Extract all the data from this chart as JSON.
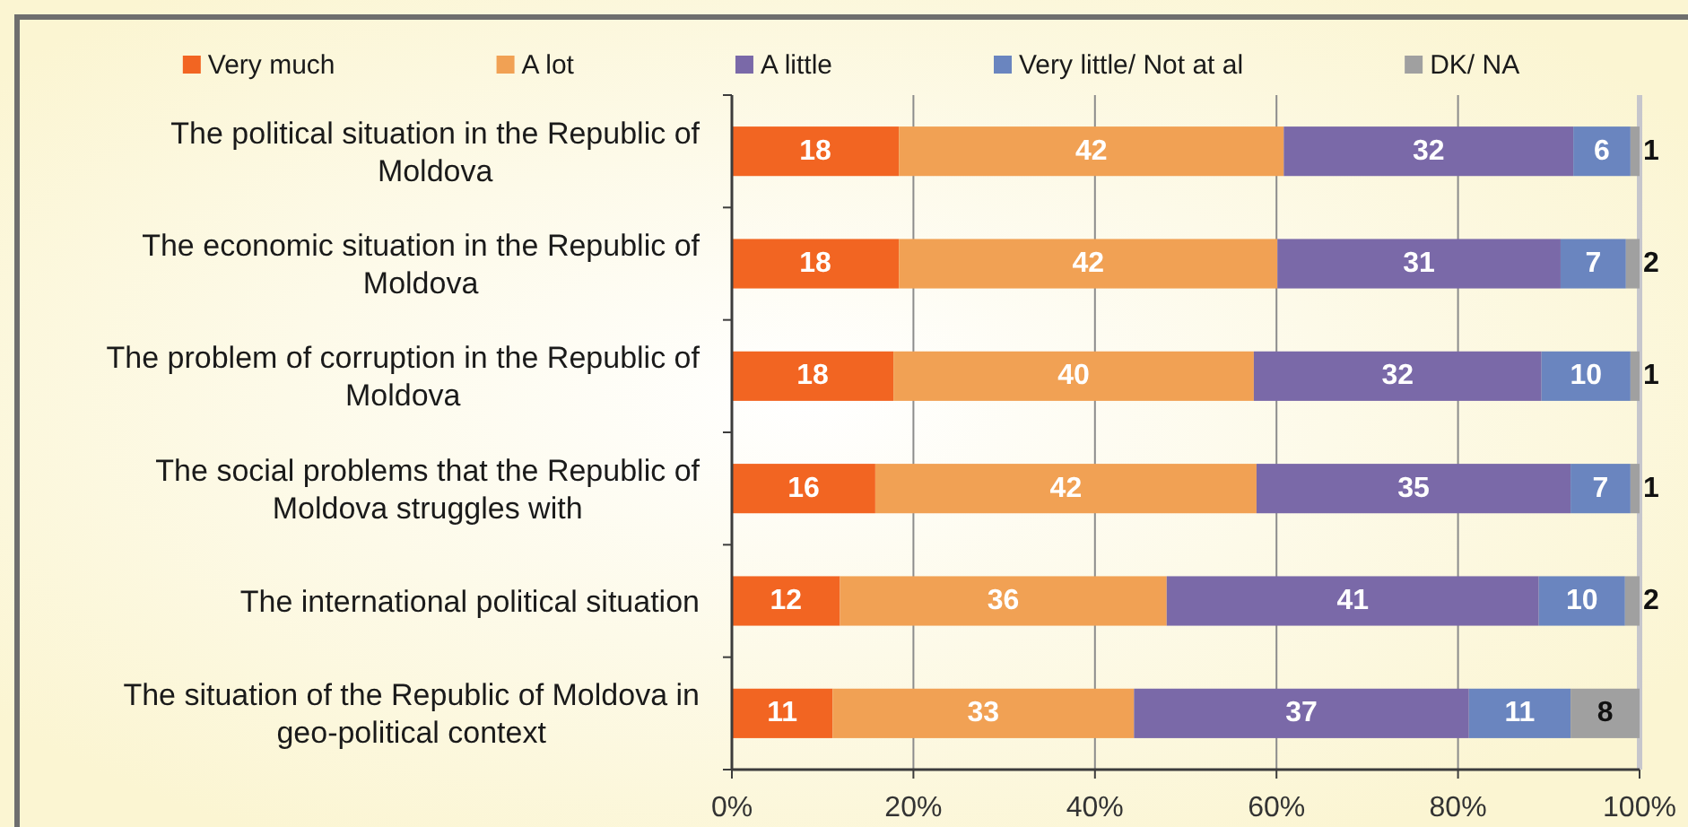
{
  "chart_data": {
    "type": "bar",
    "orientation": "horizontal",
    "stacked": true,
    "categories": [
      "The political situation in the Republic of Moldova",
      "The economic situation in the Republic of Moldova",
      "The problem of corruption in the Republic of Moldova",
      "The social problems that the Republic of Moldova struggles with",
      "The international political situation",
      "The situation of the Republic of Moldova in geo-political context"
    ],
    "series": [
      {
        "name": "Very much",
        "color": "#f26522",
        "values": [
          18.4,
          18.4,
          17.8,
          15.8,
          11.9,
          11.1
        ],
        "value_labels": [
          "18",
          "18",
          "18",
          "16",
          "12",
          "11"
        ]
      },
      {
        "name": "A lot",
        "color": "#f1a154",
        "values": [
          42.4,
          41.7,
          39.7,
          42.0,
          36.0,
          33.2
        ],
        "value_labels": [
          "42",
          "42",
          "40",
          "42",
          "36",
          "33"
        ]
      },
      {
        "name": "A little",
        "color": "#7a69a8",
        "values": [
          31.9,
          31.2,
          31.7,
          34.6,
          41.0,
          36.9
        ],
        "value_labels": [
          "32",
          "31",
          "32",
          "35",
          "41",
          "37"
        ]
      },
      {
        "name": "Very little/ Not at al",
        "color": "#6a85bf",
        "values": [
          6.3,
          7.2,
          9.8,
          6.6,
          9.5,
          11.2
        ],
        "value_labels": [
          "6",
          "7",
          "10",
          "7",
          "10",
          "11"
        ]
      },
      {
        "name": "DK/ NA",
        "color": "#a0a0a0",
        "values": [
          1.0,
          1.5,
          1.0,
          1.0,
          1.6,
          7.6
        ],
        "value_labels": [
          "1",
          "2",
          "1",
          "1",
          "2",
          "8"
        ]
      }
    ],
    "xlim": [
      0,
      100
    ],
    "xticks": [
      {
        "value": 0,
        "label": "0%"
      },
      {
        "value": 20,
        "label": "20%"
      },
      {
        "value": 40,
        "label": "40%"
      },
      {
        "value": 60,
        "label": "60%"
      },
      {
        "value": 80,
        "label": "80%"
      },
      {
        "value": 100,
        "label": "100%"
      }
    ],
    "grid": "x",
    "legend": "top"
  }
}
